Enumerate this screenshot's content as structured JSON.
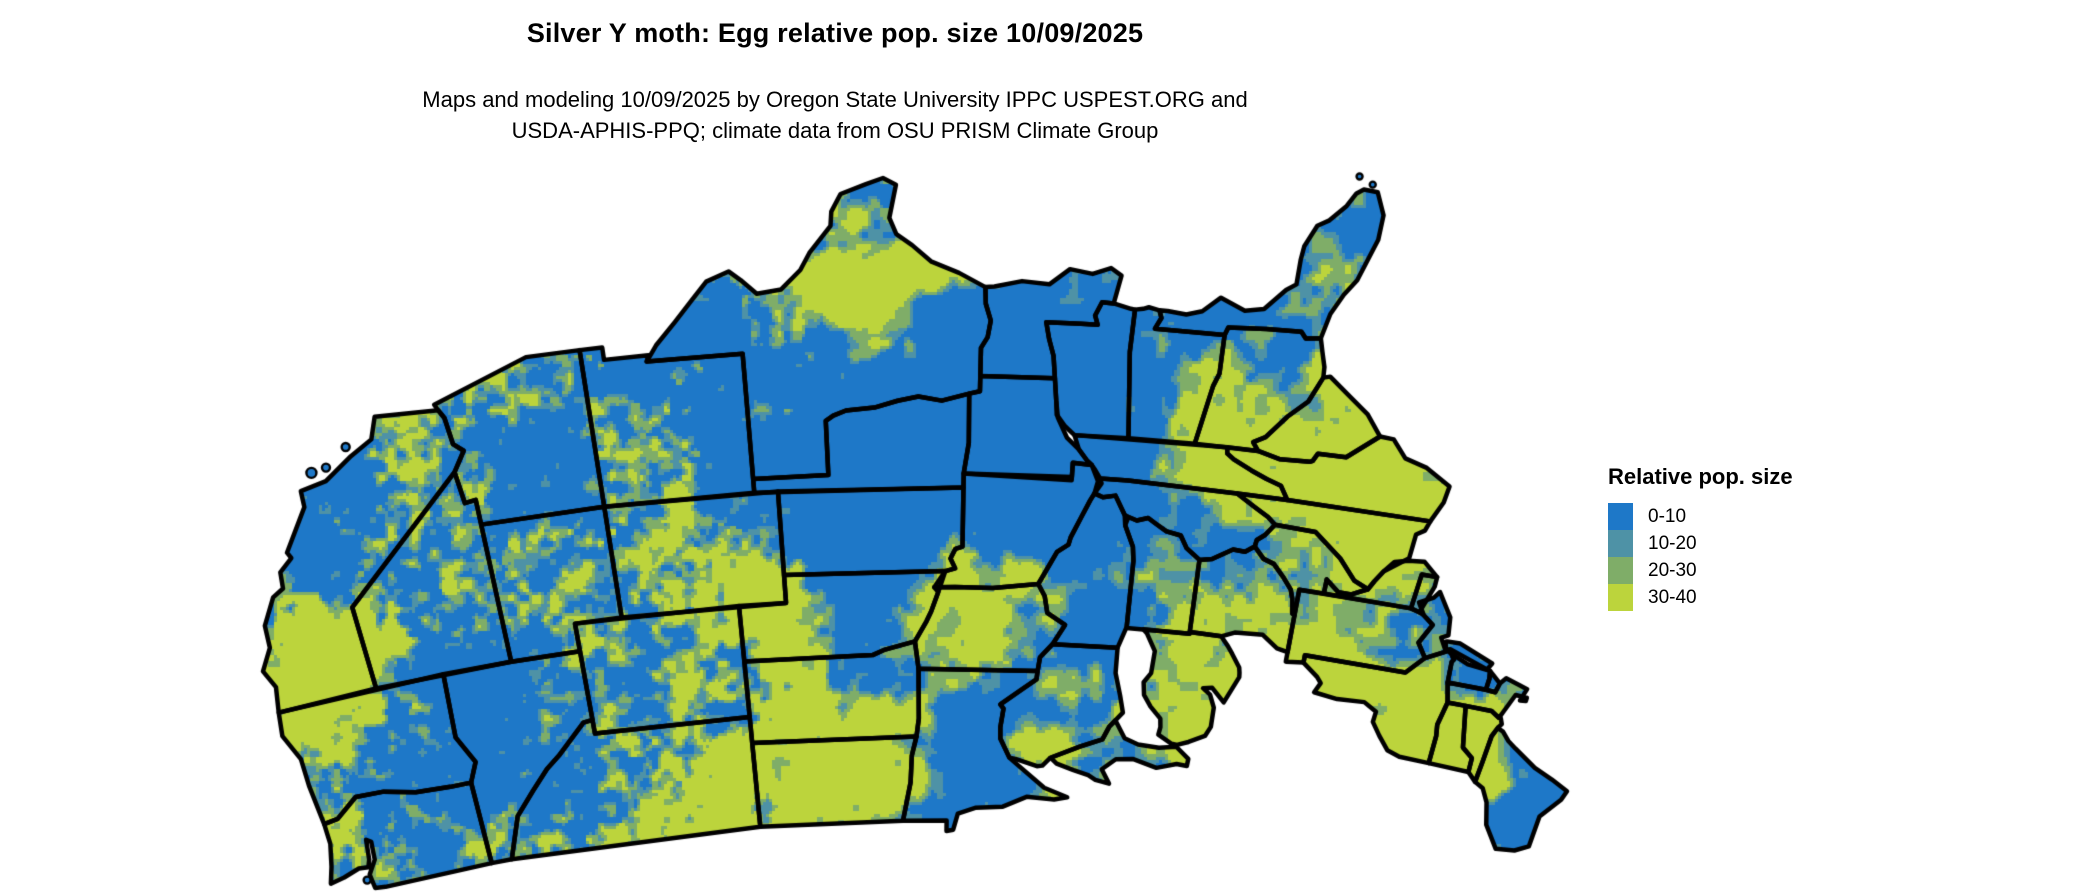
{
  "page": {
    "background_color": "#ffffff"
  },
  "header": {
    "title": "Silver Y moth: Egg relative pop. size 10/09/2025",
    "subtitle_line1": "Maps and modeling 10/09/2025 by Oregon State University IPPC USPEST.ORG and",
    "subtitle_line2": "USDA-APHIS-PPQ; climate data from OSU PRISM Climate Group"
  },
  "map": {
    "description": "Contiguous United States raster map of relative population size",
    "base_color": "#1E78C8",
    "border_color": "#000000",
    "water_color": "#ffffff",
    "class_colors": {
      "c0_10": "#1E78C8",
      "c10_20": "#4E92A6",
      "c20_30": "#7FAD68",
      "c30_40": "#BCD43C"
    }
  },
  "legend": {
    "title": "Relative pop. size",
    "items": [
      {
        "label": "0-10",
        "color": "#1E78C8"
      },
      {
        "label": "10-20",
        "color": "#4E92A6"
      },
      {
        "label": "20-30",
        "color": "#7FAD68"
      },
      {
        "label": "30-40",
        "color": "#BCD43C"
      }
    ]
  }
}
